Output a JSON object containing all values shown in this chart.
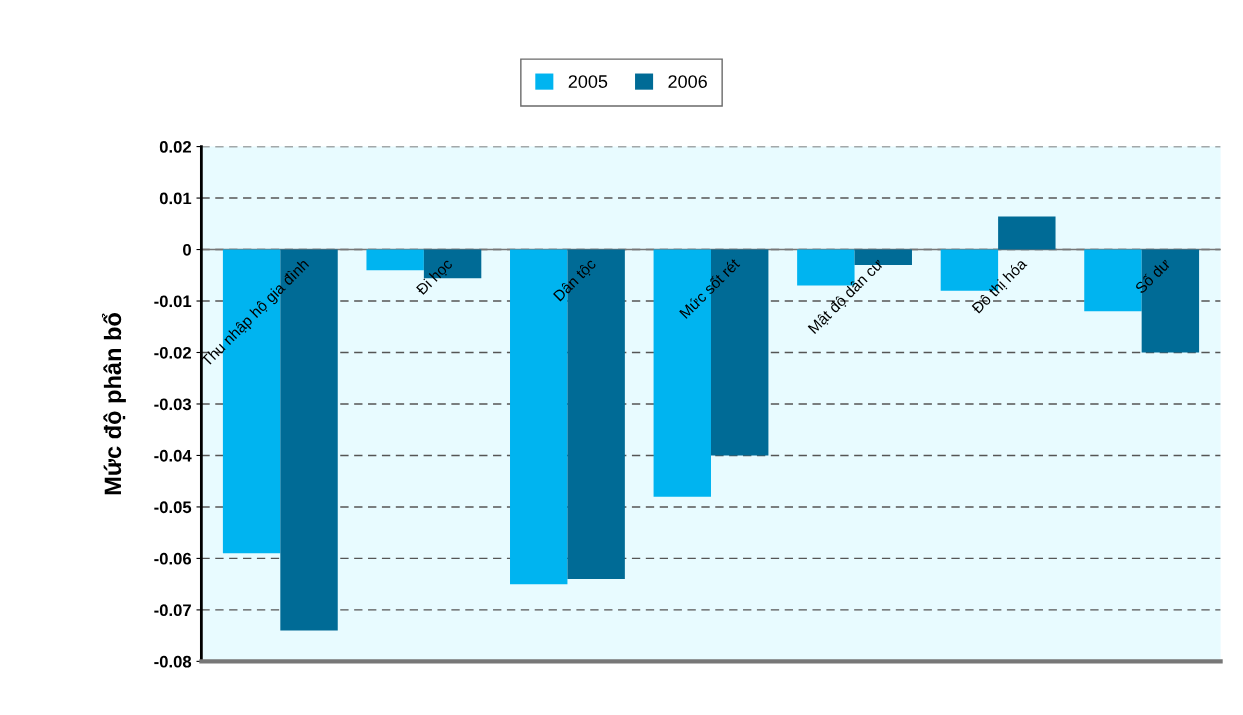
{
  "chart_data": {
    "type": "bar",
    "ylabel": "Mức độ phân bổ",
    "categories": [
      "Thu nhập hộ gia đình",
      "Đi học",
      "Dân tộc",
      "Mức sốt rét",
      "Mật độ dân cư",
      "Đô thị hóa",
      "Số dư"
    ],
    "series": [
      {
        "name": "2005",
        "color": "#00b4f0",
        "values": [
          -0.059,
          -0.004,
          -0.065,
          -0.048,
          -0.007,
          -0.008,
          -0.012
        ]
      },
      {
        "name": "2006",
        "color": "#006b96",
        "values": [
          -0.074,
          -0.0056,
          -0.064,
          -0.04,
          -0.003,
          0.0064,
          -0.02
        ]
      }
    ],
    "ylim": [
      -0.08,
      0.02
    ],
    "yticks": [
      0.02,
      0.01,
      0,
      -0.01,
      -0.02,
      -0.03,
      -0.04,
      -0.05,
      -0.06,
      -0.07,
      -0.08
    ],
    "grid": "y",
    "legend": "top"
  }
}
